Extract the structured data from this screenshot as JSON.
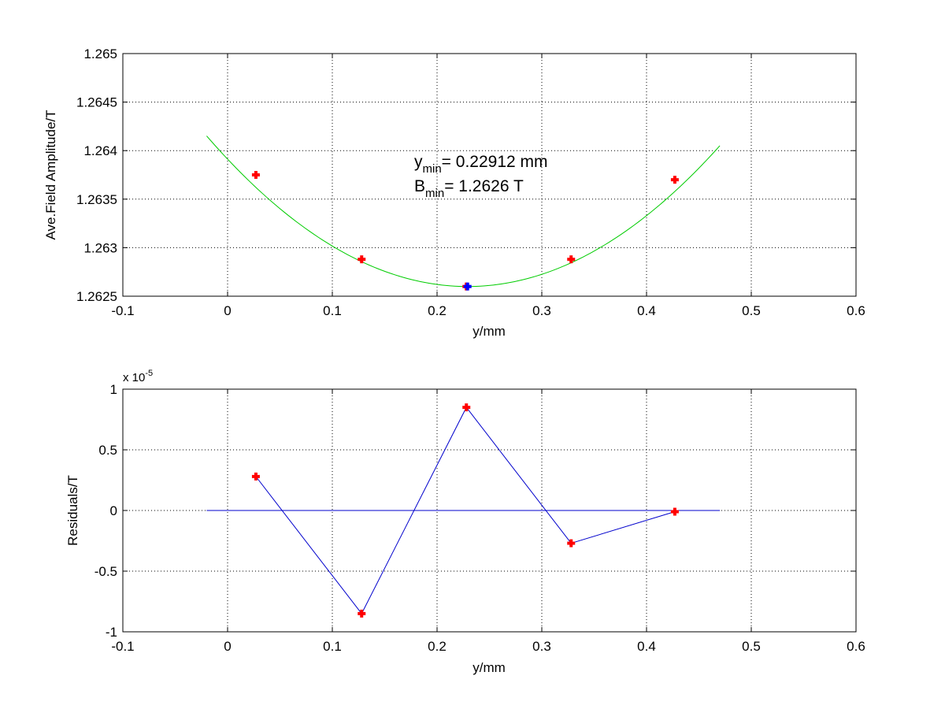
{
  "chart_data": [
    {
      "type": "line",
      "xlabel": "y/mm",
      "ylabel": "Ave.Field Amplitude/T",
      "xlim": [
        -0.1,
        0.6
      ],
      "ylim": [
        1.2625,
        1.265
      ],
      "x_ticks": [
        -0.1,
        0,
        0.1,
        0.2,
        0.3,
        0.4,
        0.5,
        0.6
      ],
      "x_tick_labels": [
        "-0.1",
        "0",
        "0.1",
        "0.2",
        "0.3",
        "0.4",
        "0.5",
        "0.6"
      ],
      "y_ticks": [
        1.2625,
        1.263,
        1.2635,
        1.264,
        1.2645,
        1.265
      ],
      "y_tick_labels": [
        "1.2625",
        "1.263",
        "1.2635",
        "1.264",
        "1.2645",
        "1.265"
      ],
      "grid": true,
      "fit_curve": {
        "color": "#00cc00",
        "x_range": [
          -0.02,
          0.47
        ],
        "vertex": [
          0.22912,
          1.2626
        ],
        "coefficient": 0.025
      },
      "series": [
        {
          "color": "#ff0000",
          "marker": "plus",
          "x": [
            0.027,
            0.128,
            0.228,
            0.328,
            0.427
          ],
          "y": [
            1.26375,
            1.26288,
            1.2626,
            1.26288,
            1.2637
          ]
        }
      ],
      "minimum_point": {
        "x": 0.22912,
        "y": 1.2626,
        "color": "#0000ff"
      },
      "annotation": {
        "line1": {
          "main": "y",
          "sub": "min",
          "rest": "= 0.22912 mm"
        },
        "line2": {
          "main": "B",
          "sub": "min",
          "rest": "= 1.2626 T"
        }
      }
    },
    {
      "type": "line",
      "xlabel": "y/mm",
      "ylabel": "Residuals/T",
      "xlim": [
        -0.1,
        0.6
      ],
      "ylim": [
        -1,
        1
      ],
      "x_ticks": [
        -0.1,
        0,
        0.1,
        0.2,
        0.3,
        0.4,
        0.5,
        0.6
      ],
      "x_tick_labels": [
        "-0.1",
        "0",
        "0.1",
        "0.2",
        "0.3",
        "0.4",
        "0.5",
        "0.6"
      ],
      "y_ticks": [
        -1,
        -0.5,
        0,
        0.5,
        1
      ],
      "y_tick_labels": [
        "-1",
        "-0.5",
        "0",
        "0.5",
        "1"
      ],
      "y_multiplier": {
        "base": "x 10",
        "exponent": "-5"
      },
      "grid": true,
      "zero_line": {
        "x_range": [
          -0.02,
          0.47
        ],
        "color": "#0000cc"
      },
      "series": [
        {
          "color": "#0000cc",
          "marker_color": "#ff0000",
          "marker": "plus",
          "x": [
            0.027,
            0.128,
            0.228,
            0.328,
            0.427
          ],
          "y": [
            0.28,
            -0.85,
            0.85,
            -0.27,
            -0.01
          ]
        }
      ]
    }
  ]
}
